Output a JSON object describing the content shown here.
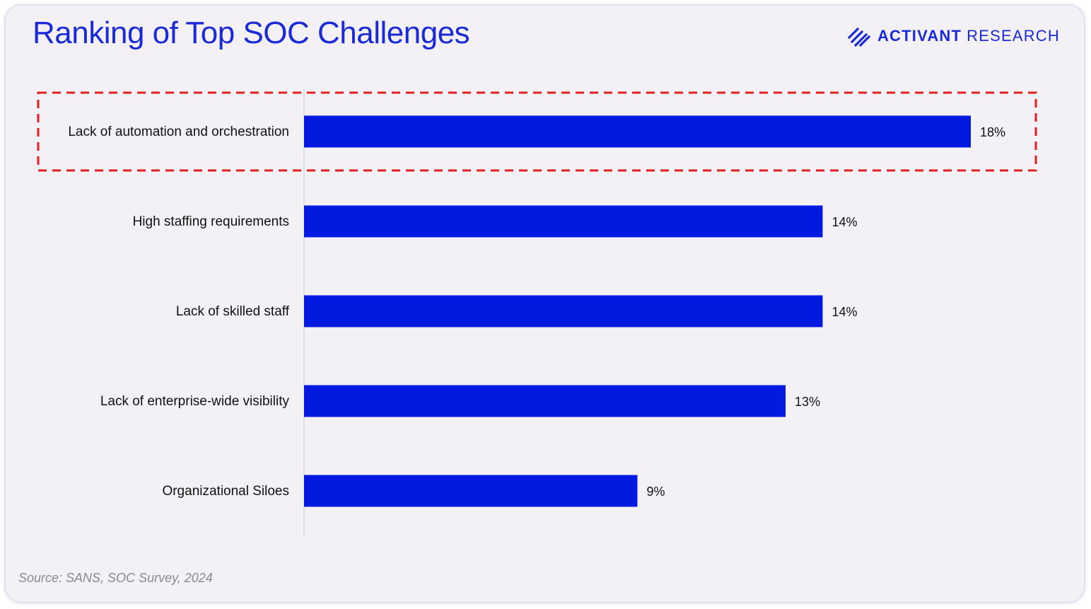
{
  "header": {
    "title": "Ranking of Top SOC Challenges",
    "brand_primary": "ACTIVANT",
    "brand_secondary": "RESEARCH"
  },
  "source": "Source: SANS, SOC Survey, 2024",
  "colors": {
    "title": "#1a2ad6",
    "bar": "#0419e0",
    "highlight_border": "#e02020",
    "axis": "#dcdcdc"
  },
  "icons": {
    "brand_logo": "diagonal-stripes-logo"
  },
  "chart_data": {
    "type": "bar",
    "orientation": "horizontal",
    "title": "Ranking of Top SOC Challenges",
    "categories": [
      "Lack of automation and orchestration",
      "High staffing requirements",
      "Lack of skilled staff",
      "Lack of enterprise-wide visibility",
      "Organizational Siloes"
    ],
    "values": [
      18,
      14,
      14,
      13,
      9
    ],
    "value_labels": [
      "18%",
      "14%",
      "14%",
      "13%",
      "9%"
    ],
    "unit": "%",
    "xlim": [
      0,
      18
    ],
    "grid": false,
    "legend": "none",
    "highlighted_category": "Lack of automation and orchestration"
  }
}
